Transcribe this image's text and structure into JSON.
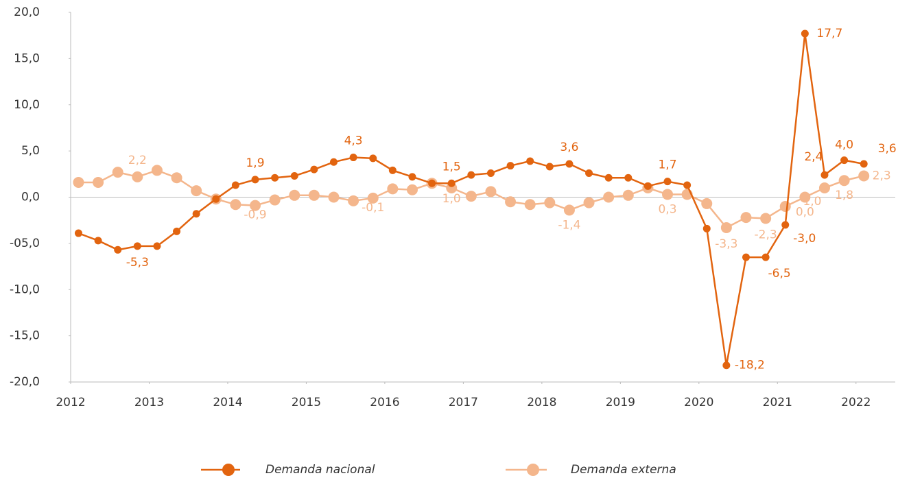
{
  "chart_data": {
    "type": "line",
    "x": [
      2012.1,
      2012.35,
      2012.6,
      2012.85,
      2013.1,
      2013.35,
      2013.6,
      2013.85,
      2014.1,
      2014.35,
      2014.6,
      2014.85,
      2015.1,
      2015.35,
      2015.6,
      2015.85,
      2016.1,
      2016.35,
      2016.6,
      2016.85,
      2017.1,
      2017.35,
      2017.6,
      2017.85,
      2018.1,
      2018.35,
      2018.6,
      2018.85,
      2019.1,
      2019.35,
      2019.6,
      2019.85,
      2020.1,
      2020.35,
      2020.6,
      2020.85,
      2021.1,
      2021.35,
      2021.6,
      2021.85,
      2022.1
    ],
    "series": [
      {
        "name": "Demanda nacional",
        "color": "#e2640f",
        "values": [
          -3.9,
          -4.7,
          -5.7,
          -5.3,
          -5.3,
          -3.7,
          -1.8,
          -0.2,
          1.3,
          1.9,
          2.1,
          2.3,
          3.0,
          3.8,
          4.3,
          4.2,
          2.9,
          2.2,
          1.5,
          1.5,
          2.4,
          2.6,
          3.4,
          3.9,
          3.3,
          3.6,
          2.6,
          2.1,
          2.1,
          1.2,
          1.7,
          1.3,
          -3.4,
          -18.2,
          -6.5,
          -6.5,
          -3.0,
          17.7,
          2.4,
          4.0,
          3.6
        ],
        "value_labels": [
          null,
          null,
          null,
          "-5,3",
          null,
          null,
          null,
          null,
          null,
          "1,9",
          null,
          null,
          null,
          null,
          "4,3",
          null,
          null,
          null,
          null,
          "1,5",
          null,
          null,
          null,
          null,
          null,
          "3,6",
          null,
          null,
          null,
          null,
          "1,7",
          null,
          null,
          "-18,2",
          null,
          "-6,5",
          "-3,0",
          "17,7",
          "2,4",
          "4,0",
          "3,6"
        ]
      },
      {
        "name": "Demanda externa",
        "color": "#f4b68c",
        "values": [
          1.6,
          1.6,
          2.7,
          2.2,
          2.9,
          2.1,
          0.7,
          -0.2,
          -0.8,
          -0.9,
          -0.3,
          0.2,
          0.2,
          0.0,
          -0.4,
          -0.1,
          0.9,
          0.8,
          1.5,
          1.0,
          0.1,
          0.6,
          -0.5,
          -0.8,
          -0.6,
          -1.4,
          -0.6,
          0.0,
          0.2,
          1.0,
          0.3,
          0.3,
          -0.7,
          -3.3,
          -2.2,
          -2.3,
          -1.0,
          0.0,
          1.0,
          1.8,
          2.3
        ],
        "value_labels": [
          null,
          null,
          null,
          "2,2",
          null,
          null,
          null,
          null,
          null,
          "-0,9",
          null,
          null,
          null,
          null,
          null,
          "-0,1",
          null,
          null,
          null,
          "1,0",
          null,
          null,
          null,
          null,
          null,
          "-1,4",
          null,
          null,
          null,
          null,
          "0,3",
          null,
          null,
          "-3,3",
          null,
          "-2,3",
          null,
          "0,0",
          "1,0",
          "1,8",
          "2,3"
        ]
      }
    ],
    "xlim": [
      2012,
      2022.5
    ],
    "xticks": [
      2012,
      2013,
      2014,
      2015,
      2016,
      2017,
      2018,
      2019,
      2020,
      2021,
      2022
    ],
    "ylim": [
      -20,
      20
    ],
    "yticks": [
      {
        "value": -20,
        "label": "-20,0"
      },
      {
        "value": -15,
        "label": "-15,0"
      },
      {
        "value": -10,
        "label": "-10,0"
      },
      {
        "value": -5,
        "label": "-05,0"
      },
      {
        "value": 0,
        "label": "0,0"
      },
      {
        "value": 5,
        "label": "5,0"
      },
      {
        "value": 10,
        "label": "10,0"
      },
      {
        "value": 15,
        "label": "15,0"
      },
      {
        "value": 20,
        "label": "20,0"
      }
    ]
  }
}
